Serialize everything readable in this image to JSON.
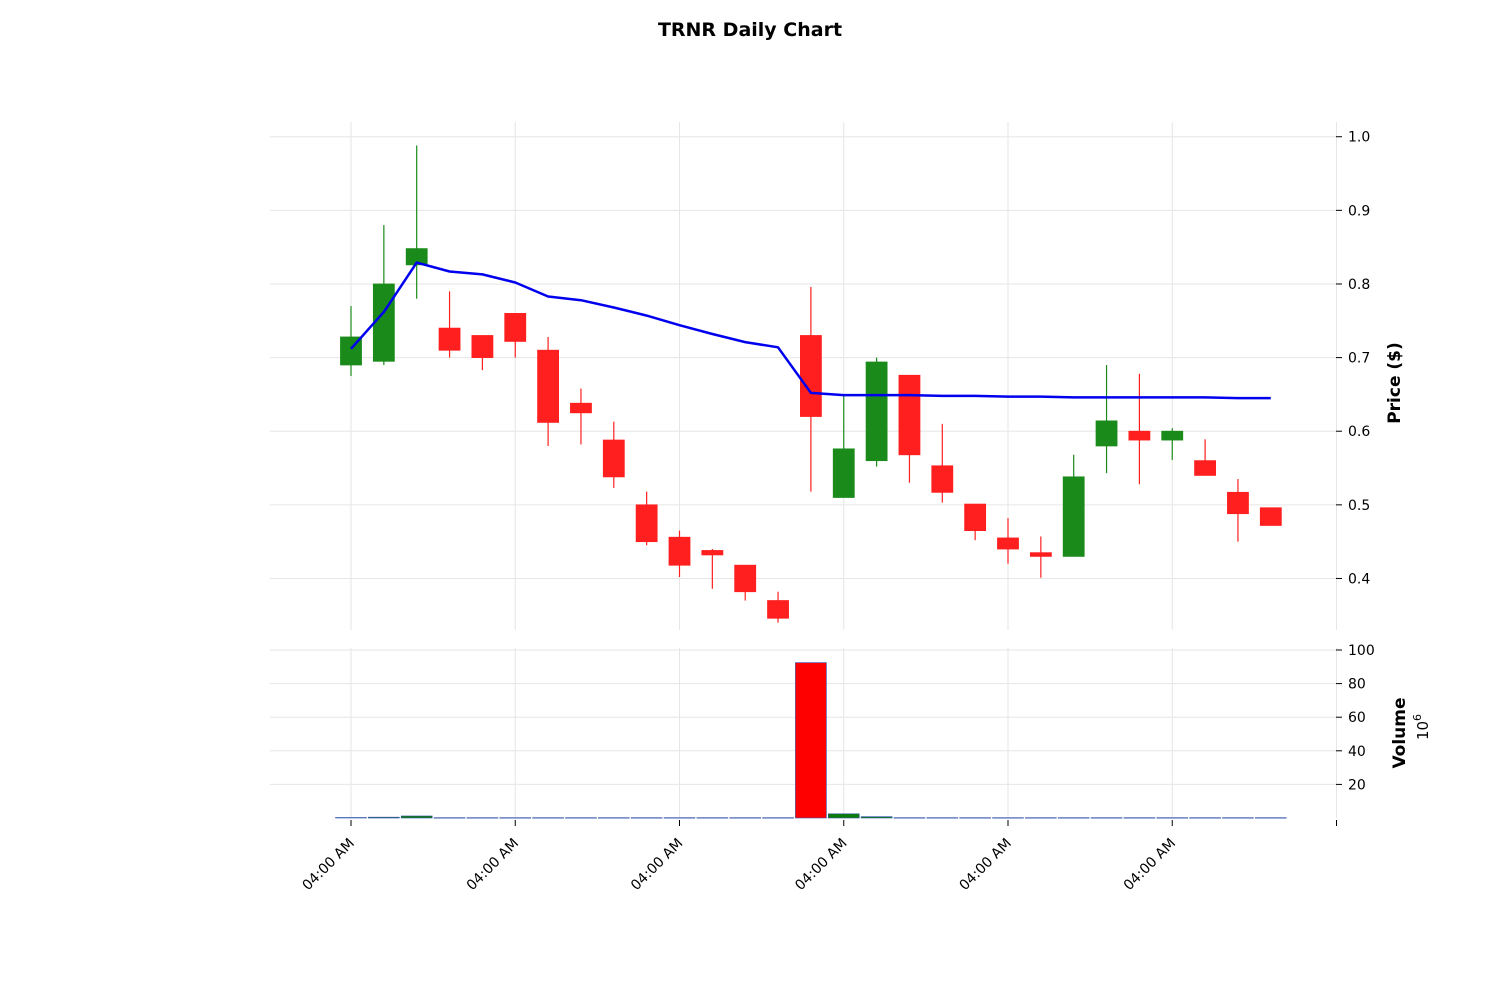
{
  "chart_data": {
    "type": "candlestick",
    "title": "TRNR Daily Chart",
    "x_tick_labels": [
      "04:00 AM",
      "04:00 AM",
      "04:00 AM",
      "04:00 AM",
      "04:00 AM",
      "04:00 AM",
      ""
    ],
    "price_axis": {
      "label": "Price ($)",
      "ylim": [
        0.33,
        1.02
      ],
      "ticks": [
        0.4,
        0.5,
        0.6,
        0.7,
        0.8,
        0.9,
        1.0
      ],
      "tick_labels": [
        "0.4",
        "0.5",
        "0.6",
        "0.7",
        "0.8",
        "0.9",
        "1.0"
      ]
    },
    "volume_axis": {
      "label": "Volume",
      "multiplier_label": "10",
      "multiplier_exponent": "6",
      "ylim": [
        0,
        100
      ],
      "ticks": [
        20,
        40,
        60,
        80,
        100
      ],
      "tick_labels": [
        "20",
        "40",
        "60",
        "80",
        "100"
      ]
    },
    "candles": [
      {
        "open": 0.69,
        "high": 0.77,
        "low": 0.675,
        "close": 0.728,
        "volume": 0.3
      },
      {
        "open": 0.695,
        "high": 0.88,
        "low": 0.69,
        "close": 0.8,
        "volume": 0.5
      },
      {
        "open": 0.826,
        "high": 0.988,
        "low": 0.78,
        "close": 0.848,
        "volume": 1.2
      },
      {
        "open": 0.74,
        "high": 0.79,
        "low": 0.7,
        "close": 0.71,
        "volume": 0.2
      },
      {
        "open": 0.73,
        "high": 0.73,
        "low": 0.683,
        "close": 0.7,
        "volume": 0.2
      },
      {
        "open": 0.76,
        "high": 0.76,
        "low": 0.7,
        "close": 0.722,
        "volume": 0.2
      },
      {
        "open": 0.71,
        "high": 0.728,
        "low": 0.58,
        "close": 0.612,
        "volume": 0.2
      },
      {
        "open": 0.638,
        "high": 0.658,
        "low": 0.582,
        "close": 0.625,
        "volume": 0.2
      },
      {
        "open": 0.588,
        "high": 0.613,
        "low": 0.523,
        "close": 0.538,
        "volume": 0.2
      },
      {
        "open": 0.5,
        "high": 0.518,
        "low": 0.445,
        "close": 0.45,
        "volume": 0.2
      },
      {
        "open": 0.456,
        "high": 0.465,
        "low": 0.402,
        "close": 0.418,
        "volume": 0.2
      },
      {
        "open": 0.438,
        "high": 0.44,
        "low": 0.386,
        "close": 0.432,
        "volume": 0.2
      },
      {
        "open": 0.418,
        "high": 0.418,
        "low": 0.37,
        "close": 0.382,
        "volume": 0.2
      },
      {
        "open": 0.37,
        "high": 0.382,
        "low": 0.34,
        "close": 0.346,
        "volume": 0.2
      },
      {
        "open": 0.73,
        "high": 0.796,
        "low": 0.518,
        "close": 0.62,
        "volume": 92.5
      },
      {
        "open": 0.51,
        "high": 0.65,
        "low": 0.51,
        "close": 0.576,
        "volume": 2.5
      },
      {
        "open": 0.56,
        "high": 0.7,
        "low": 0.552,
        "close": 0.694,
        "volume": 0.8
      },
      {
        "open": 0.676,
        "high": 0.676,
        "low": 0.53,
        "close": 0.568,
        "volume": 0.2
      },
      {
        "open": 0.553,
        "high": 0.61,
        "low": 0.503,
        "close": 0.517,
        "volume": 0.2
      },
      {
        "open": 0.501,
        "high": 0.501,
        "low": 0.452,
        "close": 0.465,
        "volume": 0.2
      },
      {
        "open": 0.455,
        "high": 0.482,
        "low": 0.42,
        "close": 0.44,
        "volume": 0.2
      },
      {
        "open": 0.435,
        "high": 0.457,
        "low": 0.401,
        "close": 0.43,
        "volume": 0.2
      },
      {
        "open": 0.43,
        "high": 0.568,
        "low": 0.43,
        "close": 0.538,
        "volume": 0.2
      },
      {
        "open": 0.58,
        "high": 0.69,
        "low": 0.543,
        "close": 0.614,
        "volume": 0.2
      },
      {
        "open": 0.6,
        "high": 0.678,
        "low": 0.528,
        "close": 0.588,
        "volume": 0.2
      },
      {
        "open": 0.588,
        "high": 0.604,
        "low": 0.561,
        "close": 0.6,
        "volume": 0.2
      },
      {
        "open": 0.56,
        "high": 0.589,
        "low": 0.54,
        "close": 0.54,
        "volume": 0.2
      },
      {
        "open": 0.517,
        "high": 0.535,
        "low": 0.45,
        "close": 0.488,
        "volume": 0.2
      },
      {
        "open": 0.496,
        "high": 0.496,
        "low": 0.472,
        "close": 0.472,
        "volume": 0.2
      }
    ],
    "moving_average": [
      0.712,
      0.762,
      0.829,
      0.817,
      0.813,
      0.802,
      0.783,
      0.778,
      0.768,
      0.757,
      0.744,
      0.732,
      0.721,
      0.714,
      0.652,
      0.649,
      0.649,
      0.649,
      0.648,
      0.648,
      0.647,
      0.647,
      0.646,
      0.646,
      0.646,
      0.646,
      0.646,
      0.645,
      0.645
    ],
    "colors": {
      "up": "#1a8b1a",
      "down": "#ff1f1f",
      "volume_up": "#0a7a0a",
      "volume_down": "#ff0000",
      "moving_average": "#0000ee",
      "grid": "#e6e6e6"
    },
    "grid": true
  }
}
